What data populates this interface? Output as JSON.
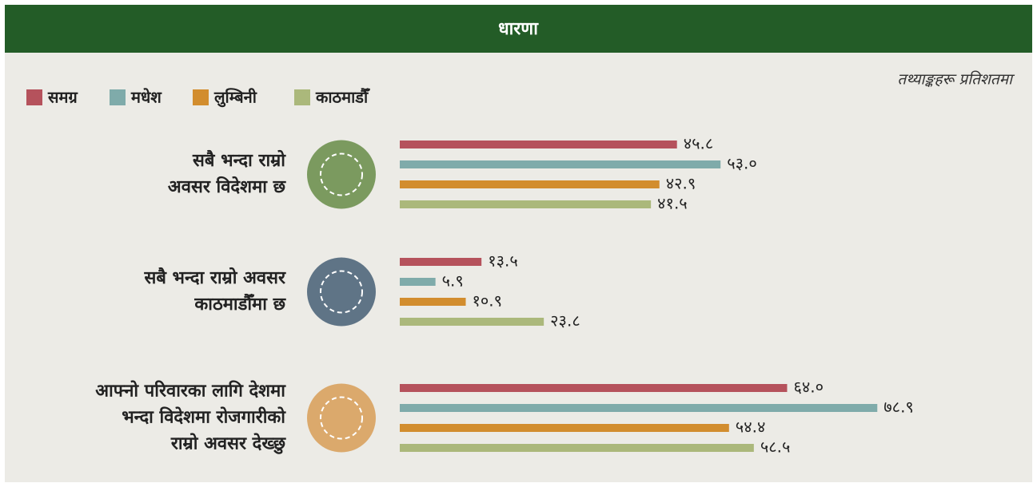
{
  "chart_data": {
    "type": "bar",
    "title": "धारणा",
    "note": "तथ्याङ्कहरू प्रतिशतमा",
    "categories": [
      [
        "सबै भन्दा राम्रो",
        "अवसर विदेशमा छ"
      ],
      [
        "सबै भन्दा राम्रो अवसर",
        "काठमाडौँमा छ"
      ],
      [
        "आफ्नो परिवारका लागि देशमा",
        "भन्दा विदेशमा रोजगारीको",
        "राम्रो अवसर देख्छु"
      ]
    ],
    "icon_colors": [
      "#7b9a5f",
      "#5f7486",
      "#dba96c"
    ],
    "series": [
      {
        "name": "समग्र",
        "color": "#b5525c",
        "values": [
          45.8,
          13.5,
          64.0
        ],
        "value_labels": [
          "४५.८",
          "१३.५",
          "६४.०"
        ]
      },
      {
        "name": "मधेश",
        "color": "#7fabaa",
        "values": [
          53.0,
          5.9,
          78.9
        ],
        "value_labels": [
          "५३.०",
          "५.९",
          "७८.९"
        ]
      },
      {
        "name": "लुम्बिनी",
        "color": "#d28d2e",
        "values": [
          42.9,
          10.9,
          54.4
        ],
        "value_labels": [
          "४२.९",
          "१०.९",
          "५४.४"
        ]
      },
      {
        "name": "काठमाडौँ",
        "color": "#abb87b",
        "values": [
          41.5,
          23.8,
          58.5
        ],
        "value_labels": [
          "४१.५",
          "२३.८",
          "५८.५"
        ]
      }
    ]
  }
}
